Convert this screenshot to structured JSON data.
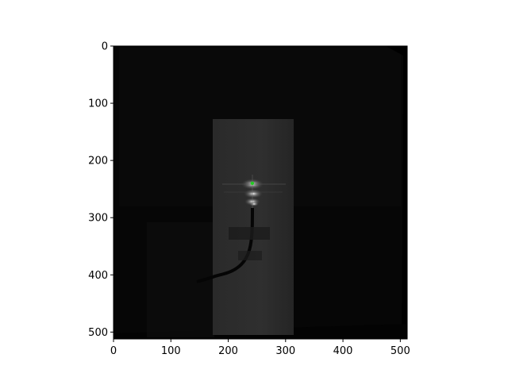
{
  "chart_data": {
    "type": "heatmap",
    "title": "",
    "xlabel": "",
    "ylabel": "",
    "xlim": [
      0,
      512
    ],
    "ylim": [
      512,
      0
    ],
    "x_ticks": [
      0,
      100,
      200,
      300,
      400,
      500
    ],
    "y_ticks": [
      0,
      100,
      200,
      300,
      400,
      500
    ],
    "colormap": "grayscale",
    "grid": false,
    "markers": [
      {
        "x": 242,
        "y": 240,
        "color": "#22cc22"
      }
    ]
  },
  "colors": {
    "background": "#ffffff",
    "image_base": "#060606",
    "marker": "#22cc22"
  }
}
